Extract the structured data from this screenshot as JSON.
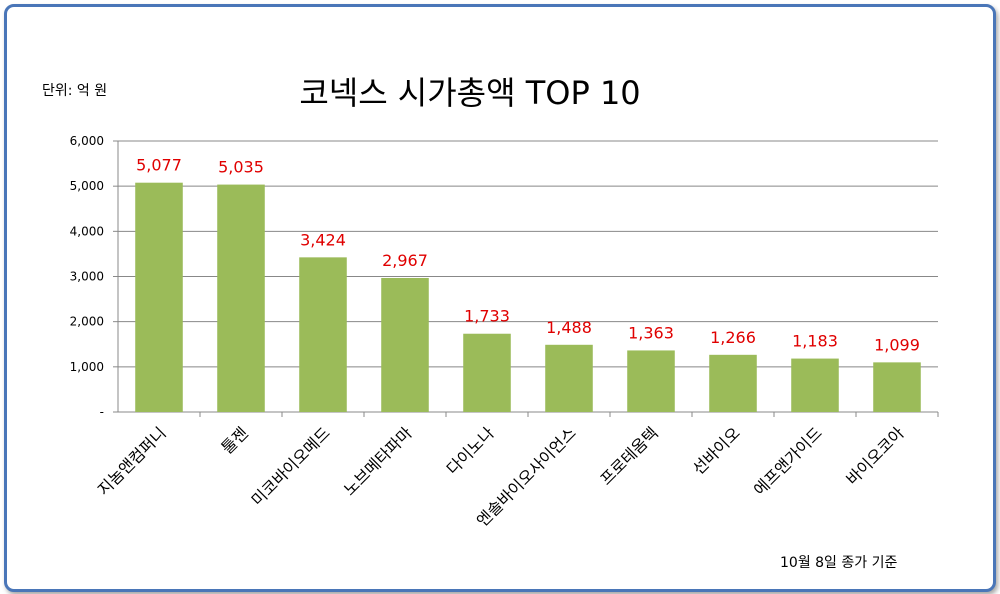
{
  "chart_data": {
    "type": "bar",
    "title": "코넥스 시가총액 TOP 10",
    "unit_label": "단위: 억 원",
    "footnote": "10월 8일 종가 기준",
    "categories": [
      "지놈앤컴퍼니",
      "툴젠",
      "미코바이오메드",
      "노브메타파마",
      "다이노나",
      "엔솔바이오사이언스",
      "프로테옴텍",
      "선바이오",
      "에프앤가이드",
      "바이오코아"
    ],
    "values": [
      5077,
      5035,
      3424,
      2967,
      1733,
      1488,
      1363,
      1266,
      1183,
      1099
    ],
    "value_labels": [
      "5,077",
      "5,035",
      "3,424",
      "2,967",
      "1,733",
      "1,488",
      "1,363",
      "1,266",
      "1,183",
      "1,099"
    ],
    "ylim": [
      0,
      6000
    ],
    "yticks": [
      {
        "value": 0,
        "label": "-"
      },
      {
        "value": 1000,
        "label": "1,000"
      },
      {
        "value": 2000,
        "label": "2,000"
      },
      {
        "value": 3000,
        "label": "3,000"
      },
      {
        "value": 4000,
        "label": "4,000"
      },
      {
        "value": 5000,
        "label": "5,000"
      },
      {
        "value": 6000,
        "label": "6,000"
      }
    ],
    "grid": true,
    "legend": "none",
    "colors": {
      "bar": "#9bbb59",
      "data_label": "#e00000",
      "frame": "#4a76b8",
      "grid": "#888888"
    }
  }
}
